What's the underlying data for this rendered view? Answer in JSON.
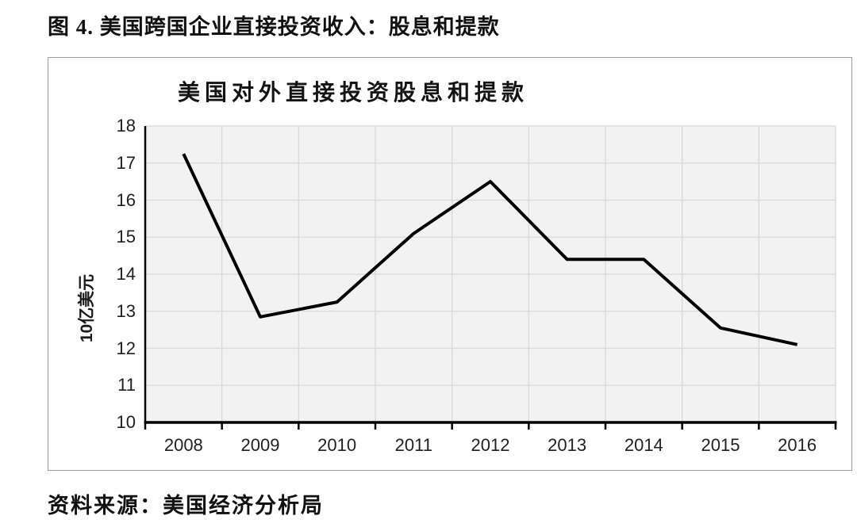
{
  "page": {
    "title": "图 4. 美国跨国企业直接投资收入：股息和提款",
    "source": "资料来源：美国经济分析局"
  },
  "chart_data": {
    "type": "line",
    "title": "美国对外直接投资股息和提款",
    "xlabel": "",
    "ylabel": "10亿美元",
    "categories": [
      "2008",
      "2009",
      "2010",
      "2011",
      "2012",
      "2013",
      "2014",
      "2015",
      "2016"
    ],
    "values": [
      17.25,
      12.85,
      13.25,
      15.1,
      16.5,
      14.4,
      14.4,
      12.55,
      12.1
    ],
    "ylim": [
      10,
      18
    ],
    "ytick_step": 1,
    "grid": true,
    "legend_position": "none",
    "colors": {
      "line": "#000000",
      "axis": "#000000",
      "gridline": "#d8d8d8",
      "plot_background": "#f2f2f2",
      "chart_border": "#9b9b9b",
      "text": "#1a1a1a"
    }
  }
}
